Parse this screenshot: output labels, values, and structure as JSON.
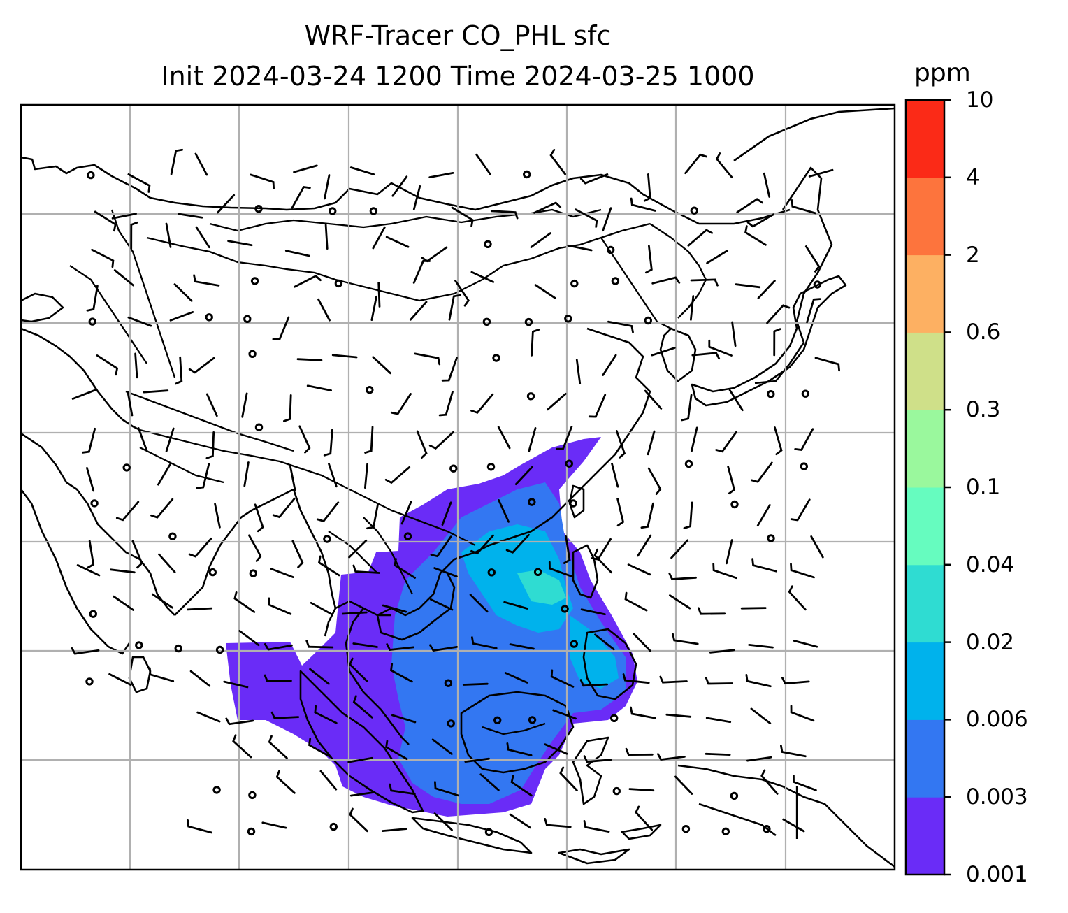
{
  "title": {
    "line1": "WRF-Tracer CO_PHL sfc",
    "line2": "Init 2024-03-24 1200 Time 2024-03-25 1000"
  },
  "colorbar": {
    "unit": "ppm",
    "levels": [
      "0.001",
      "0.003",
      "0.006",
      "0.02",
      "0.04",
      "0.1",
      "0.3",
      "0.6",
      "2",
      "4",
      "10"
    ],
    "colors": [
      "#6a2cf7",
      "#3377f2",
      "#00b2ec",
      "#2fdcd2",
      "#66fcbf",
      "#9af89d",
      "#cfe089",
      "#fdb062",
      "#fd743d",
      "#fb2a17"
    ]
  },
  "map": {
    "field": "CO_PHL surface tracer",
    "features": [
      "coastlines",
      "country-borders",
      "lat-lon-gridlines",
      "wind-barbs",
      "calm-wind-circles",
      "tracer-concentration-fill"
    ]
  }
}
